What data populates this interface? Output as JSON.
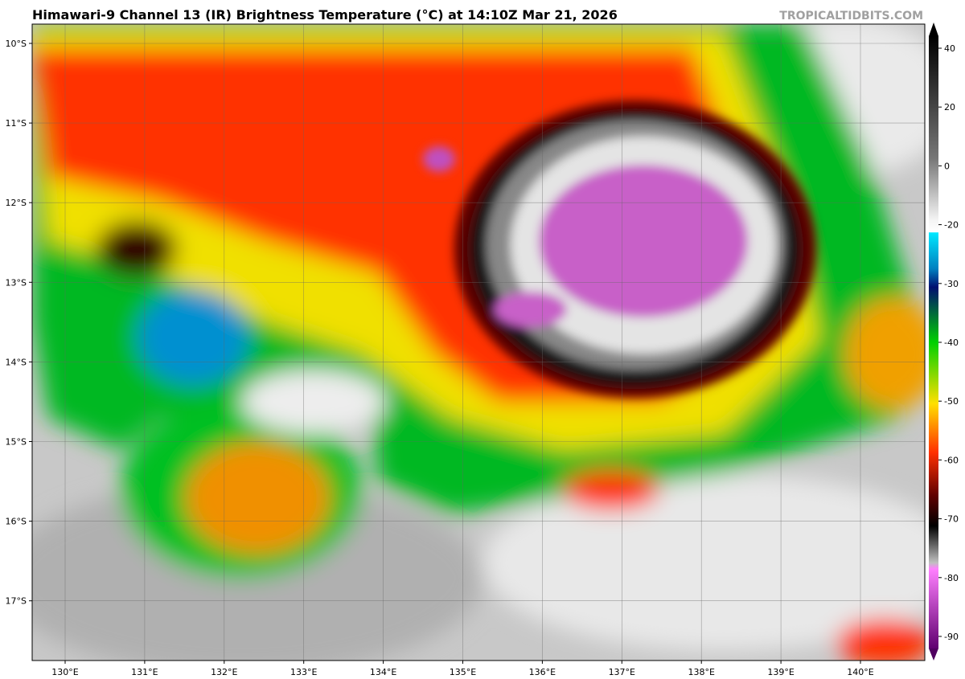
{
  "header": {
    "title": "Himawari-9 Channel 13 (IR) Brightness Temperature (°C) at 14:10Z Mar 21, 2026",
    "credit": "TROPICALTIDBITS.COM"
  },
  "map": {
    "lat_labels": [
      "10°S",
      "11°S",
      "12°S",
      "13°S",
      "14°S",
      "15°S",
      "16°S",
      "17°S"
    ],
    "lon_labels": [
      "130°E",
      "131°E",
      "132°E",
      "133°E",
      "134°E",
      "135°E",
      "136°E",
      "137°E",
      "138°E",
      "139°E",
      "140°E"
    ]
  },
  "colorbar": {
    "ticks": [
      40,
      20,
      0,
      -20,
      -30,
      -40,
      -50,
      -60,
      -70,
      -80,
      -90
    ]
  }
}
